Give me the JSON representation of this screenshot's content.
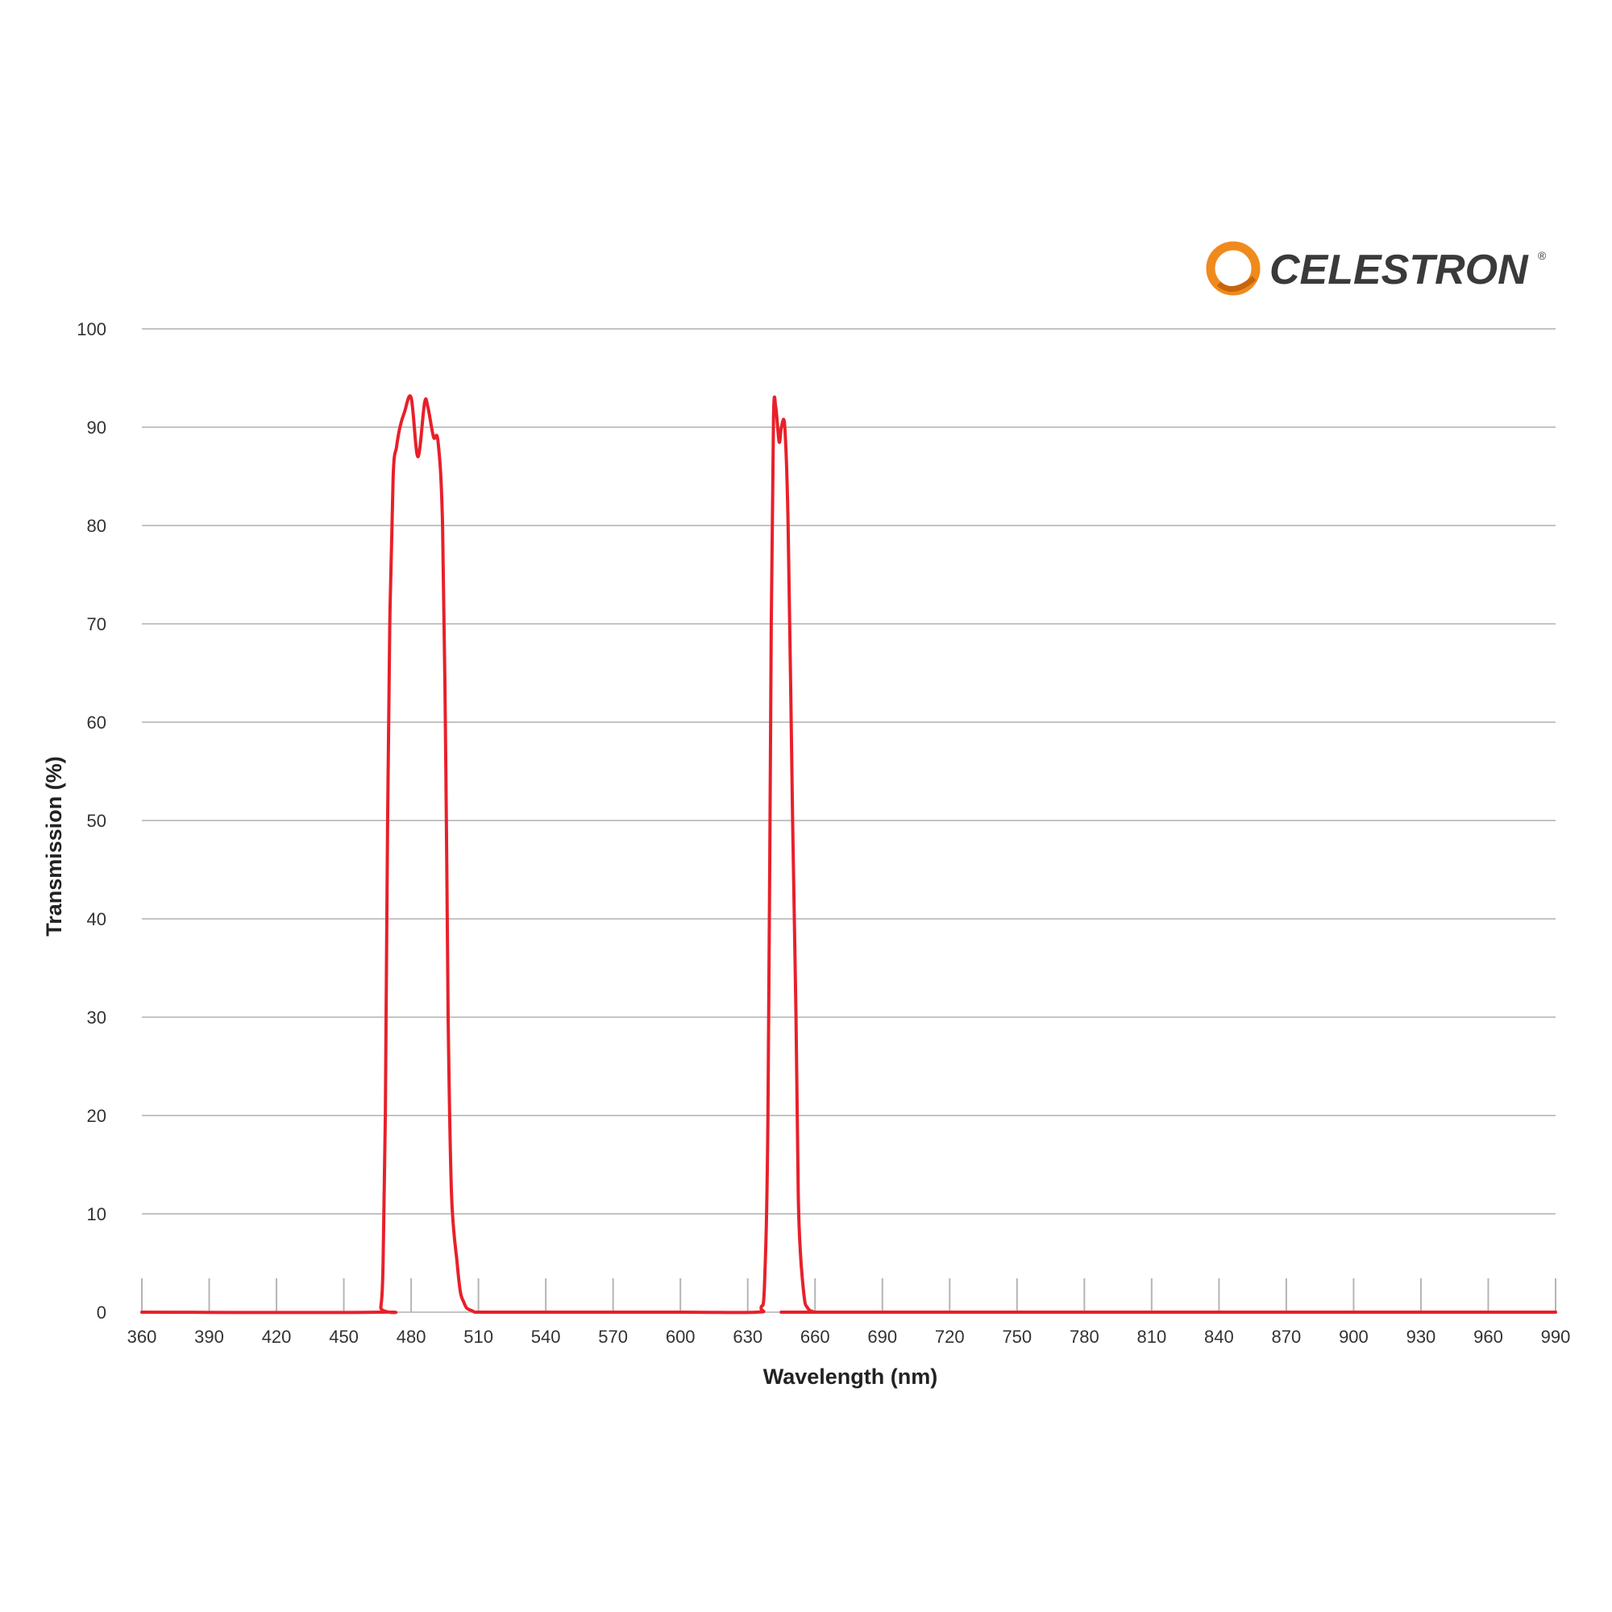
{
  "brand": {
    "name": "CELESTRON",
    "trademark": "®",
    "accent_color": "#f08a1c",
    "text_color": "#3a3a3a"
  },
  "chart_data": {
    "type": "line",
    "xlabel": "Wavelength (nm)",
    "ylabel": "Transmission (%)",
    "xlim": [
      360,
      990
    ],
    "ylim": [
      0,
      100
    ],
    "x_ticks": [
      360,
      390,
      420,
      450,
      480,
      510,
      540,
      570,
      600,
      630,
      660,
      690,
      720,
      750,
      780,
      810,
      840,
      870,
      900,
      930,
      960,
      990
    ],
    "y_ticks": [
      0,
      10,
      20,
      30,
      40,
      50,
      60,
      70,
      80,
      90,
      100
    ],
    "grid": {
      "horizontal": true,
      "vertical": false
    },
    "line_color": "#e8202a",
    "series": [
      {
        "x": [
          360,
          465,
          466.5,
          467.5,
          468.5,
          469.5,
          470.5,
          472,
          473.5,
          475,
          477,
          480,
          483,
          486,
          487.5,
          490,
          492,
          494,
          495.5,
          496.5,
          498,
          500.5,
          502,
          503.5,
          504.5,
          505.5,
          506.5,
          507.5,
          508.5,
          510,
          512,
          515,
          520,
          540,
          600,
          634,
          636,
          637.5,
          639,
          640.5,
          641.5,
          642.5,
          644,
          645,
          646.5,
          648,
          650,
          651.5,
          652.5,
          653.5,
          654.5,
          655.5,
          656.5,
          657.5,
          658.5,
          660,
          662,
          665,
          670,
          990
        ],
        "y": [
          0,
          0,
          0.5,
          5,
          20,
          50,
          70,
          85,
          88,
          90,
          91.5,
          93,
          87,
          92.5,
          92,
          89,
          88.5,
          80,
          55,
          30,
          12,
          5,
          2,
          1,
          0.5,
          0.3,
          0.2,
          0.1,
          0,
          0,
          0,
          0,
          0,
          0,
          0,
          0,
          0.5,
          3,
          20,
          70,
          91,
          92,
          88.5,
          90,
          90,
          80,
          50,
          30,
          12,
          6,
          3,
          1,
          0.5,
          0.2,
          0.1,
          0,
          0,
          0,
          0,
          0
        ]
      }
    ]
  }
}
